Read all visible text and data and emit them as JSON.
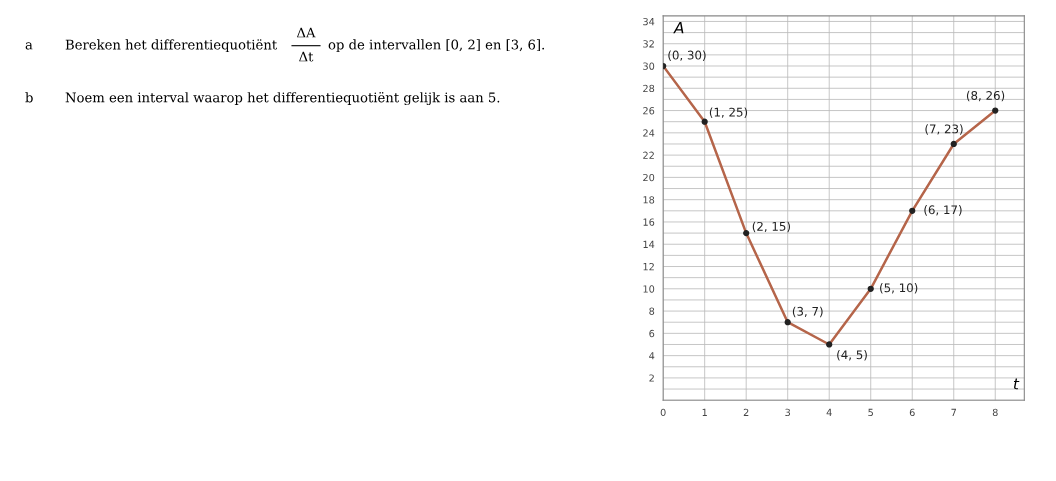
{
  "chart_data": {
    "type": "line",
    "x": [
      0,
      1,
      2,
      3,
      4,
      5,
      6,
      7,
      8
    ],
    "series": [
      {
        "color": "#b5654a",
        "values": [
          30,
          25,
          15,
          7,
          5,
          10,
          17,
          23,
          26
        ]
      }
    ],
    "marker": "circle",
    "xlabel": "t",
    "ylabel": "A",
    "xlim": [
      0,
      8.7
    ],
    "ylim": [
      0,
      34.5
    ],
    "xticks": [
      0,
      1,
      2,
      3,
      4,
      5,
      6,
      7,
      8
    ],
    "yticks": [
      2,
      4,
      6,
      8,
      10,
      12,
      14,
      16,
      18,
      20,
      22,
      24,
      26,
      28,
      30,
      32,
      34
    ],
    "grid": true,
    "annotations": [
      {
        "text": "(0, 30)",
        "x": 0,
        "y": 30
      },
      {
        "text": "(1, 25)",
        "x": 1,
        "y": 25
      },
      {
        "text": "(2, 15)",
        "x": 2,
        "y": 15
      },
      {
        "text": "(3, 7)",
        "x": 3,
        "y": 7
      },
      {
        "text": "(4, 5)",
        "x": 4,
        "y": 5
      },
      {
        "text": "(5, 10)",
        "x": 5,
        "y": 10
      },
      {
        "text": "(6, 17)",
        "x": 6,
        "y": 17
      },
      {
        "text": "(7, 23)",
        "x": 7,
        "y": 23
      },
      {
        "text": "(8, 26)",
        "x": 8,
        "y": 26
      },
      "a",
      "Bereken het differentiequotiënt",
      "ΔA",
      "Δt",
      "op de intervallen [0, 2] en [3, 6].",
      "b",
      "Noem een interval waarop het differentiequotiënt gelijk is aan 5."
    ]
  }
}
